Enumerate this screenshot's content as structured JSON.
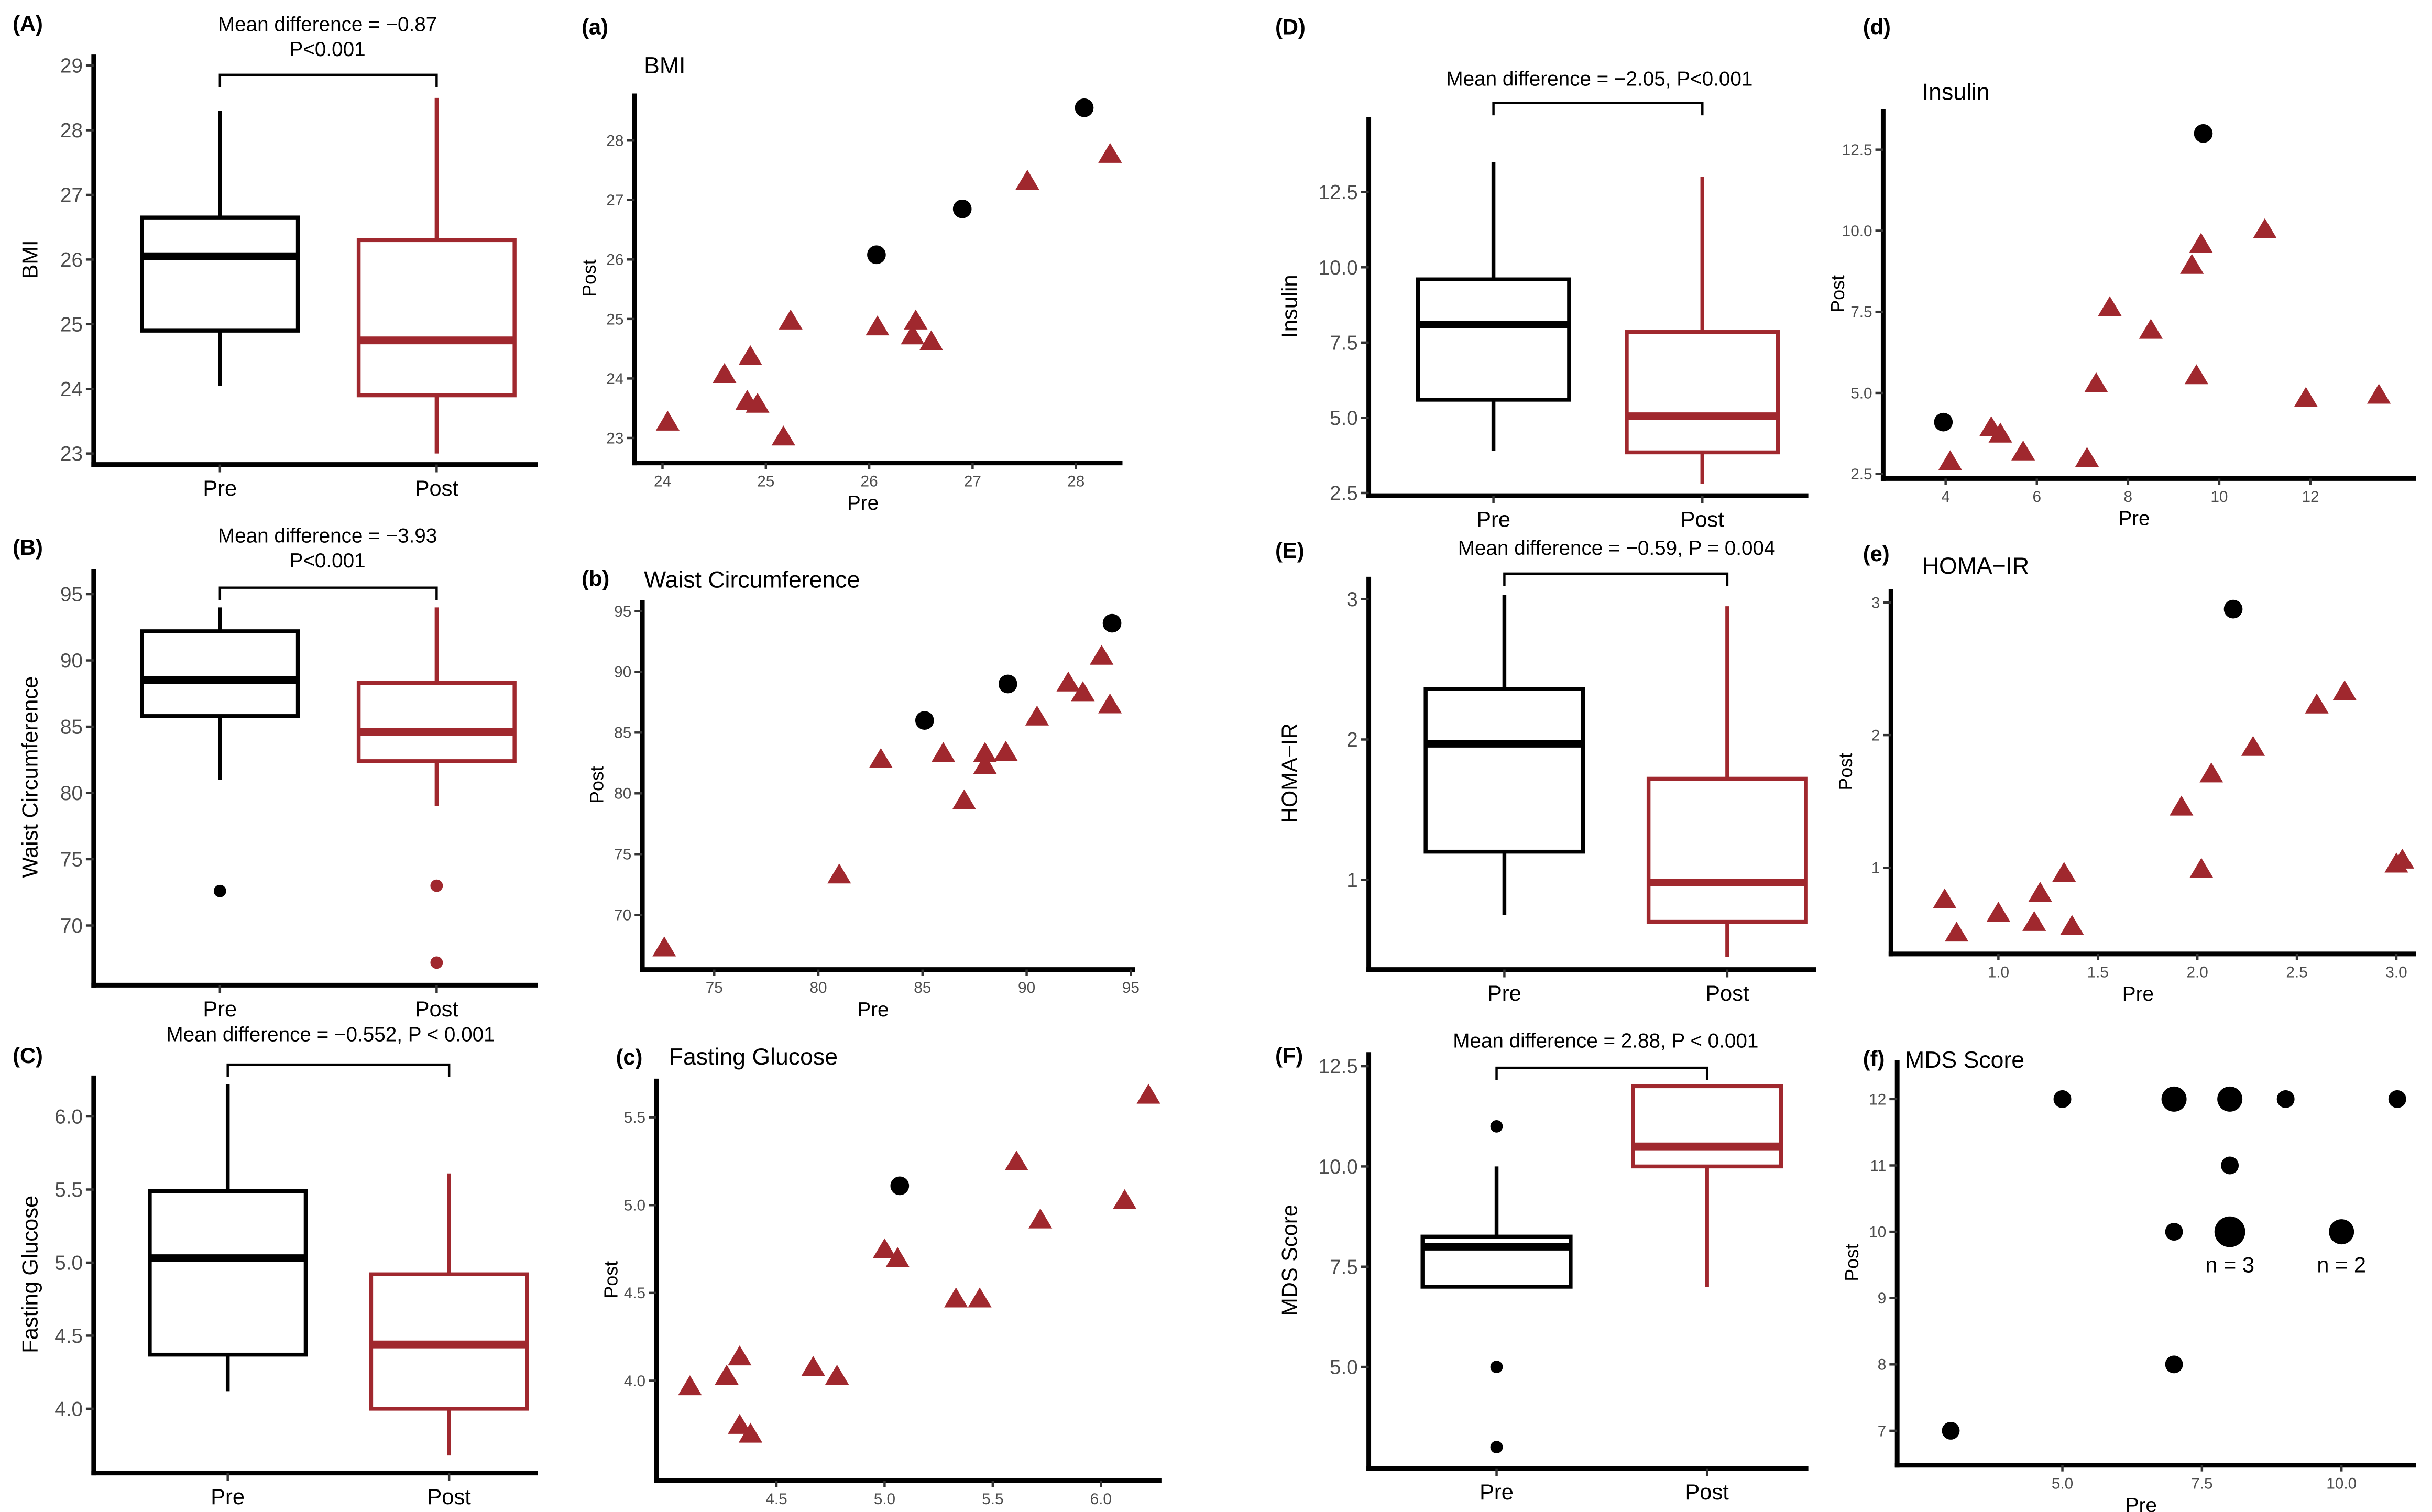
{
  "colors": {
    "pre": "#000000",
    "post": "#a0282e",
    "tick": "#4d4d4d",
    "circle": "#000000",
    "triangle": "#a0282e"
  },
  "chart_data": [
    {
      "id": "A",
      "panel_label": "(A)",
      "type": "box",
      "ylabel": "BMI",
      "annotation": [
        "Mean difference = −0.87",
        "P<0.001"
      ],
      "categories": [
        "Pre",
        "Post"
      ],
      "ylim": [
        22.83,
        29.17
      ],
      "yticks": [
        "23",
        "24",
        "25",
        "26",
        "27",
        "28",
        "29"
      ],
      "boxes": [
        {
          "name": "Pre",
          "whisker_low": 24.05,
          "q1": 24.9,
          "median": 26.05,
          "q3": 26.65,
          "whisker_high": 28.3,
          "outliers": []
        },
        {
          "name": "Post",
          "whisker_low": 23.0,
          "q1": 23.9,
          "median": 24.75,
          "q3": 26.3,
          "whisker_high": 28.5,
          "outliers": []
        }
      ]
    },
    {
      "id": "B",
      "panel_label": "(B)",
      "type": "box",
      "ylabel": "Waist Circumference",
      "annotation": [
        "Mean difference = −3.93",
        "P<0.001"
      ],
      "categories": [
        "Pre",
        "Post"
      ],
      "ylim": [
        65.5,
        96.9
      ],
      "yticks": [
        "70",
        "75",
        "80",
        "85",
        "90",
        "95"
      ],
      "boxes": [
        {
          "name": "Pre",
          "whisker_low": 81.0,
          "q1": 85.8,
          "median": 88.5,
          "q3": 92.2,
          "whisker_high": 94.0,
          "outliers": [
            72.6
          ]
        },
        {
          "name": "Post",
          "whisker_low": 79.0,
          "q1": 82.4,
          "median": 84.6,
          "q3": 88.3,
          "whisker_high": 94.0,
          "outliers": [
            73.0,
            67.2
          ]
        }
      ]
    },
    {
      "id": "C",
      "panel_label": "(C)",
      "type": "box",
      "ylabel": "Fasting Glucose",
      "annotation": [
        "Mean difference = −0.552, P < 0.001"
      ],
      "categories": [
        "Pre",
        "Post"
      ],
      "ylim": [
        3.56,
        6.28
      ],
      "yticks": [
        "4.0",
        "4.5",
        "5.0",
        "5.5",
        "6.0"
      ],
      "boxes": [
        {
          "name": "Pre",
          "whisker_low": 4.12,
          "q1": 4.37,
          "median": 5.03,
          "q3": 5.49,
          "whisker_high": 6.22,
          "outliers": []
        },
        {
          "name": "Post",
          "whisker_low": 3.68,
          "q1": 4.0,
          "median": 4.44,
          "q3": 4.92,
          "whisker_high": 5.61,
          "outliers": []
        }
      ]
    },
    {
      "id": "D",
      "panel_label": "(D)",
      "type": "box",
      "ylabel": "Insulin",
      "annotation": [
        "Mean difference = −2.05,   P<0.001"
      ],
      "categories": [
        "Pre",
        "Post"
      ],
      "ylim": [
        2.41,
        15.0
      ],
      "yticks": [
        "2.5",
        "5.0",
        "7.5",
        "10.0",
        "12.5"
      ],
      "boxes": [
        {
          "name": "Pre",
          "whisker_low": 3.9,
          "q1": 5.6,
          "median": 8.1,
          "q3": 9.6,
          "whisker_high": 13.5,
          "outliers": []
        },
        {
          "name": "Post",
          "whisker_low": 2.8,
          "q1": 3.85,
          "median": 5.05,
          "q3": 7.85,
          "whisker_high": 13.0,
          "outliers": []
        }
      ]
    },
    {
      "id": "E",
      "panel_label": "(E)",
      "type": "box",
      "ylabel": "HOMA−IR",
      "annotation": [
        "Mean difference = −0.59,   P = 0.004"
      ],
      "categories": [
        "Pre",
        "Post"
      ],
      "ylim": [
        0.36,
        3.16
      ],
      "yticks": [
        "1",
        "2",
        "3"
      ],
      "boxes": [
        {
          "name": "Pre",
          "whisker_low": 0.75,
          "q1": 1.2,
          "median": 1.97,
          "q3": 2.36,
          "whisker_high": 3.03,
          "outliers": []
        },
        {
          "name": "Post",
          "whisker_low": 0.45,
          "q1": 0.7,
          "median": 0.98,
          "q3": 1.72,
          "whisker_high": 2.95,
          "outliers": []
        }
      ]
    },
    {
      "id": "F",
      "panel_label": "(F)",
      "type": "box",
      "ylabel": "MDS Score",
      "annotation": [
        "Mean difference = 2.88,   P < 0.001"
      ],
      "categories": [
        "Pre",
        "Post"
      ],
      "ylim": [
        2.47,
        12.85
      ],
      "yticks": [
        "5.0",
        "7.5",
        "10.0",
        "12.5"
      ],
      "boxes": [
        {
          "name": "Pre",
          "whisker_low": 7.0,
          "q1": 7.0,
          "median": 8.0,
          "q3": 8.25,
          "whisker_high": 10.0,
          "outliers": [
            11,
            5,
            3
          ]
        },
        {
          "name": "Post",
          "whisker_low": 7.0,
          "q1": 10.0,
          "median": 10.5,
          "q3": 12.0,
          "whisker_high": 12.0,
          "outliers": []
        }
      ]
    },
    {
      "id": "a",
      "panel_label": "(a)",
      "type": "scatter",
      "title": "BMI",
      "xlabel": "Pre",
      "ylabel": "Post",
      "xlim": [
        23.73,
        28.45
      ],
      "ylim": [
        22.58,
        28.79
      ],
      "xticks": [
        "24",
        "25",
        "26",
        "27",
        "28"
      ],
      "yticks": [
        "23",
        "24",
        "25",
        "26",
        "27",
        "28"
      ],
      "points": [
        {
          "x": 26.07,
          "y": 26.08,
          "shape": "circle"
        },
        {
          "x": 26.9,
          "y": 26.85,
          "shape": "circle"
        },
        {
          "x": 28.08,
          "y": 28.55,
          "shape": "circle"
        },
        {
          "x": 24.05,
          "y": 23.25,
          "shape": "triangle"
        },
        {
          "x": 24.6,
          "y": 24.05,
          "shape": "triangle"
        },
        {
          "x": 24.85,
          "y": 24.35,
          "shape": "triangle"
        },
        {
          "x": 24.82,
          "y": 23.6,
          "shape": "triangle"
        },
        {
          "x": 24.92,
          "y": 23.55,
          "shape": "triangle"
        },
        {
          "x": 25.17,
          "y": 23.0,
          "shape": "triangle"
        },
        {
          "x": 25.24,
          "y": 24.95,
          "shape": "triangle"
        },
        {
          "x": 26.08,
          "y": 24.85,
          "shape": "triangle"
        },
        {
          "x": 26.45,
          "y": 24.95,
          "shape": "triangle"
        },
        {
          "x": 26.42,
          "y": 24.7,
          "shape": "triangle"
        },
        {
          "x": 26.6,
          "y": 24.6,
          "shape": "triangle"
        },
        {
          "x": 27.53,
          "y": 27.3,
          "shape": "triangle"
        },
        {
          "x": 28.33,
          "y": 27.75,
          "shape": "triangle"
        }
      ]
    },
    {
      "id": "b",
      "panel_label": "(b)",
      "type": "scatter",
      "title": "Waist Circumference",
      "xlabel": "Pre",
      "ylabel": "Post",
      "xlim": [
        71.55,
        95.2
      ],
      "ylim": [
        65.5,
        95.9
      ],
      "xticks": [
        "75",
        "80",
        "85",
        "90",
        "95"
      ],
      "yticks": [
        "70",
        "75",
        "80",
        "85",
        "90",
        "95"
      ],
      "points": [
        {
          "x": 85.1,
          "y": 86.0,
          "shape": "circle"
        },
        {
          "x": 89.1,
          "y": 89.0,
          "shape": "circle"
        },
        {
          "x": 94.1,
          "y": 94.0,
          "shape": "circle"
        },
        {
          "x": 72.6,
          "y": 67.2,
          "shape": "triangle"
        },
        {
          "x": 81.0,
          "y": 73.2,
          "shape": "triangle"
        },
        {
          "x": 83.0,
          "y": 82.7,
          "shape": "triangle"
        },
        {
          "x": 86.0,
          "y": 83.2,
          "shape": "triangle"
        },
        {
          "x": 87.0,
          "y": 79.3,
          "shape": "triangle"
        },
        {
          "x": 88.0,
          "y": 83.2,
          "shape": "triangle"
        },
        {
          "x": 88.0,
          "y": 82.2,
          "shape": "triangle"
        },
        {
          "x": 89.0,
          "y": 83.3,
          "shape": "triangle"
        },
        {
          "x": 90.5,
          "y": 86.2,
          "shape": "triangle"
        },
        {
          "x": 92.0,
          "y": 89.0,
          "shape": "triangle"
        },
        {
          "x": 92.7,
          "y": 88.2,
          "shape": "triangle"
        },
        {
          "x": 93.6,
          "y": 91.2,
          "shape": "triangle"
        },
        {
          "x": 94.0,
          "y": 87.2,
          "shape": "triangle"
        }
      ]
    },
    {
      "id": "c",
      "panel_label": "(c)",
      "type": "scatter",
      "title": "Fasting Glucose",
      "xlabel": "Pre",
      "ylabel": "Post",
      "xlim": [
        3.945,
        6.28
      ],
      "ylim": [
        3.43,
        5.72
      ],
      "xticks": [
        "4.5",
        "5.0",
        "5.5",
        "6.0"
      ],
      "yticks": [
        "4.0",
        "4.5",
        "5.0",
        "5.5"
      ],
      "points": [
        {
          "x": 5.07,
          "y": 5.11,
          "shape": "circle"
        },
        {
          "x": 4.1,
          "y": 3.96,
          "shape": "triangle"
        },
        {
          "x": 4.27,
          "y": 4.02,
          "shape": "triangle"
        },
        {
          "x": 4.33,
          "y": 4.13,
          "shape": "triangle"
        },
        {
          "x": 4.33,
          "y": 3.74,
          "shape": "triangle"
        },
        {
          "x": 4.38,
          "y": 3.69,
          "shape": "triangle"
        },
        {
          "x": 4.67,
          "y": 4.07,
          "shape": "triangle"
        },
        {
          "x": 4.78,
          "y": 4.02,
          "shape": "triangle"
        },
        {
          "x": 5.0,
          "y": 4.74,
          "shape": "triangle"
        },
        {
          "x": 5.06,
          "y": 4.69,
          "shape": "triangle"
        },
        {
          "x": 5.33,
          "y": 4.46,
          "shape": "triangle"
        },
        {
          "x": 5.44,
          "y": 4.46,
          "shape": "triangle"
        },
        {
          "x": 5.61,
          "y": 5.24,
          "shape": "triangle"
        },
        {
          "x": 5.72,
          "y": 4.91,
          "shape": "triangle"
        },
        {
          "x": 6.11,
          "y": 5.02,
          "shape": "triangle"
        },
        {
          "x": 6.22,
          "y": 5.62,
          "shape": "triangle"
        }
      ]
    },
    {
      "id": "d",
      "panel_label": "(d)",
      "type": "scatter",
      "title": "Insulin",
      "xlabel": "Pre",
      "ylabel": "Post",
      "xlim": [
        2.63,
        14.32
      ],
      "ylim": [
        2.36,
        13.75
      ],
      "xticks": [
        "4",
        "6",
        "8",
        "10",
        "12"
      ],
      "yticks": [
        "2.5",
        "5.0",
        "7.5",
        "10.0",
        "12.5"
      ],
      "points": [
        {
          "x": 3.95,
          "y": 4.1,
          "shape": "circle"
        },
        {
          "x": 9.65,
          "y": 13.0,
          "shape": "circle"
        },
        {
          "x": 4.1,
          "y": 2.85,
          "shape": "triangle"
        },
        {
          "x": 5.0,
          "y": 3.9,
          "shape": "triangle"
        },
        {
          "x": 5.2,
          "y": 3.7,
          "shape": "triangle"
        },
        {
          "x": 5.7,
          "y": 3.15,
          "shape": "triangle"
        },
        {
          "x": 7.1,
          "y": 2.95,
          "shape": "triangle"
        },
        {
          "x": 7.3,
          "y": 5.25,
          "shape": "triangle"
        },
        {
          "x": 7.6,
          "y": 7.6,
          "shape": "triangle"
        },
        {
          "x": 8.5,
          "y": 6.9,
          "shape": "triangle"
        },
        {
          "x": 9.4,
          "y": 8.9,
          "shape": "triangle"
        },
        {
          "x": 9.6,
          "y": 9.55,
          "shape": "triangle"
        },
        {
          "x": 9.5,
          "y": 5.5,
          "shape": "triangle"
        },
        {
          "x": 11.0,
          "y": 10.0,
          "shape": "triangle"
        },
        {
          "x": 11.9,
          "y": 4.8,
          "shape": "triangle"
        },
        {
          "x": 13.5,
          "y": 4.9,
          "shape": "triangle"
        }
      ]
    },
    {
      "id": "e",
      "panel_label": "(e)",
      "type": "scatter",
      "title": "HOMA−IR",
      "xlabel": "Pre",
      "ylabel": "Post",
      "xlim": [
        0.46,
        3.1
      ],
      "ylim": [
        0.35,
        3.1
      ],
      "xticks": [
        "1.0",
        "1.5",
        "2.0",
        "2.5",
        "3.0"
      ],
      "yticks": [
        "1",
        "2",
        "3"
      ],
      "points": [
        {
          "x": 2.18,
          "y": 2.95,
          "shape": "circle"
        },
        {
          "x": 0.73,
          "y": 0.75,
          "shape": "triangle"
        },
        {
          "x": 0.79,
          "y": 0.5,
          "shape": "triangle"
        },
        {
          "x": 1.0,
          "y": 0.65,
          "shape": "triangle"
        },
        {
          "x": 1.18,
          "y": 0.58,
          "shape": "triangle"
        },
        {
          "x": 1.21,
          "y": 0.8,
          "shape": "triangle"
        },
        {
          "x": 1.33,
          "y": 0.95,
          "shape": "triangle"
        },
        {
          "x": 1.37,
          "y": 0.55,
          "shape": "triangle"
        },
        {
          "x": 1.92,
          "y": 1.45,
          "shape": "triangle"
        },
        {
          "x": 2.02,
          "y": 0.98,
          "shape": "triangle"
        },
        {
          "x": 2.07,
          "y": 1.7,
          "shape": "triangle"
        },
        {
          "x": 2.28,
          "y": 1.9,
          "shape": "triangle"
        },
        {
          "x": 2.6,
          "y": 2.22,
          "shape": "triangle"
        },
        {
          "x": 2.74,
          "y": 2.32,
          "shape": "triangle"
        },
        {
          "x": 3.0,
          "y": 1.02,
          "shape": "triangle"
        },
        {
          "x": 3.03,
          "y": 1.05,
          "shape": "triangle"
        }
      ]
    },
    {
      "id": "f",
      "panel_label": "(f)",
      "type": "scatter",
      "title": "MDS Score",
      "xlabel": "Pre",
      "ylabel": "Post",
      "xlim": [
        2.04,
        11.34
      ],
      "ylim": [
        6.48,
        12.59
      ],
      "xticks": [
        "5.0",
        "7.5",
        "10.0"
      ],
      "yticks": [
        "7",
        "8",
        "9",
        "10",
        "11",
        "12"
      ],
      "points": [
        {
          "x": 3,
          "y": 7,
          "n": 1,
          "shape": "circle"
        },
        {
          "x": 5,
          "y": 12,
          "n": 1,
          "shape": "circle"
        },
        {
          "x": 7,
          "y": 12,
          "n": 2,
          "shape": "circle"
        },
        {
          "x": 8,
          "y": 12,
          "n": 2,
          "shape": "circle"
        },
        {
          "x": 9,
          "y": 12,
          "n": 1,
          "shape": "circle"
        },
        {
          "x": 11,
          "y": 12,
          "n": 1,
          "shape": "circle"
        },
        {
          "x": 8,
          "y": 11,
          "n": 1,
          "shape": "circle"
        },
        {
          "x": 7,
          "y": 10,
          "n": 1,
          "shape": "circle"
        },
        {
          "x": 8,
          "y": 10,
          "n": 3,
          "shape": "circle"
        },
        {
          "x": 10,
          "y": 10,
          "n": 2,
          "shape": "circle"
        },
        {
          "x": 7,
          "y": 8,
          "n": 1,
          "shape": "circle"
        }
      ],
      "annotations": [
        {
          "text": "n = 3",
          "x": 8,
          "y": 10
        },
        {
          "text": "n = 2",
          "x": 10,
          "y": 10
        }
      ]
    }
  ]
}
